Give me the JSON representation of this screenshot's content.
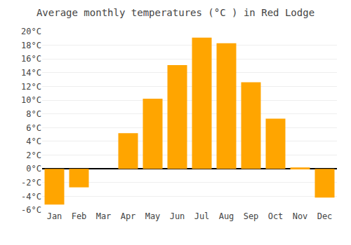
{
  "chart_data": {
    "type": "bar",
    "title": "Average monthly temperatures (°C ) in Red Lodge",
    "categories": [
      "Jan",
      "Feb",
      "Mar",
      "Apr",
      "May",
      "Jun",
      "Jul",
      "Aug",
      "Sep",
      "Oct",
      "Nov",
      "Dec"
    ],
    "values": [
      -5.2,
      -2.7,
      0.0,
      5.2,
      10.2,
      15.1,
      19.1,
      18.3,
      12.6,
      7.3,
      0.2,
      -4.2
    ],
    "color": "#FFA500",
    "ylim": [
      -6,
      20
    ],
    "yticks": [
      {
        "value": -6,
        "label": "-6°C"
      },
      {
        "value": -4,
        "label": "-4°C"
      },
      {
        "value": -2,
        "label": "-2°C"
      },
      {
        "value": 0,
        "label": "0°C"
      },
      {
        "value": 2,
        "label": "2°C"
      },
      {
        "value": 4,
        "label": "4°C"
      },
      {
        "value": 6,
        "label": "6°C"
      },
      {
        "value": 8,
        "label": "8°C"
      },
      {
        "value": 10,
        "label": "10°C"
      },
      {
        "value": 12,
        "label": "12°C"
      },
      {
        "value": 14,
        "label": "14°C"
      },
      {
        "value": 16,
        "label": "16°C"
      },
      {
        "value": 18,
        "label": "18°C"
      },
      {
        "value": 20,
        "label": "20°C"
      }
    ],
    "grid": true
  }
}
